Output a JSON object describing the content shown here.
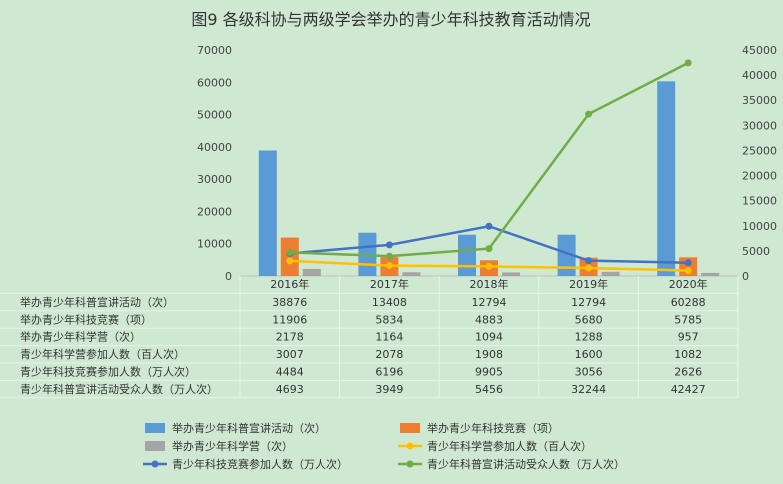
{
  "chart_data": {
    "type": "bar",
    "title": "图9  各级科协与两级学会举办的青少年科技教育活动情况",
    "categories": [
      "2016年",
      "2017年",
      "2018年",
      "2019年",
      "2020年"
    ],
    "left_axis": {
      "ylim": [
        0,
        70000
      ],
      "ticks": [
        "0",
        "10000",
        "20000",
        "30000",
        "40000",
        "50000",
        "60000",
        "70000"
      ]
    },
    "right_axis": {
      "ylim": [
        0,
        45000
      ],
      "ticks": [
        "0",
        "5000",
        "10000",
        "15000",
        "20000",
        "25000",
        "30000",
        "35000",
        "40000",
        "45000"
      ]
    },
    "grid": false,
    "legend_position": "bottom",
    "series": [
      {
        "name": "举办青少年科普宣讲活动（次）",
        "kind": "bar",
        "axis": "left",
        "color": "#5b9bd5",
        "values": [
          38876,
          13408,
          12794,
          12794,
          60288
        ]
      },
      {
        "name": "举办青少年科技竞赛（项）",
        "kind": "bar",
        "axis": "left",
        "color": "#ed7d31",
        "values": [
          11906,
          5834,
          4883,
          5680,
          5785
        ]
      },
      {
        "name": "举办青少年科学营（次）",
        "kind": "bar",
        "axis": "left",
        "color": "#a5a5a5",
        "values": [
          2178,
          1164,
          1094,
          1288,
          957
        ]
      },
      {
        "name": "青少年科学营参加人数（百人次）",
        "kind": "line",
        "axis": "right",
        "color": "#ffc000",
        "values": [
          3007,
          2078,
          1908,
          1600,
          1082
        ]
      },
      {
        "name": "青少年科技竞赛参加人数（万人次）",
        "kind": "line",
        "axis": "right",
        "color": "#4472c4",
        "values": [
          4484,
          6196,
          9905,
          3056,
          2626
        ]
      },
      {
        "name": "青少年科普宣讲活动受众人数（万人次）",
        "kind": "line",
        "axis": "right",
        "color": "#70ad47",
        "values": [
          4693,
          3949,
          5456,
          32244,
          42427
        ]
      }
    ]
  }
}
